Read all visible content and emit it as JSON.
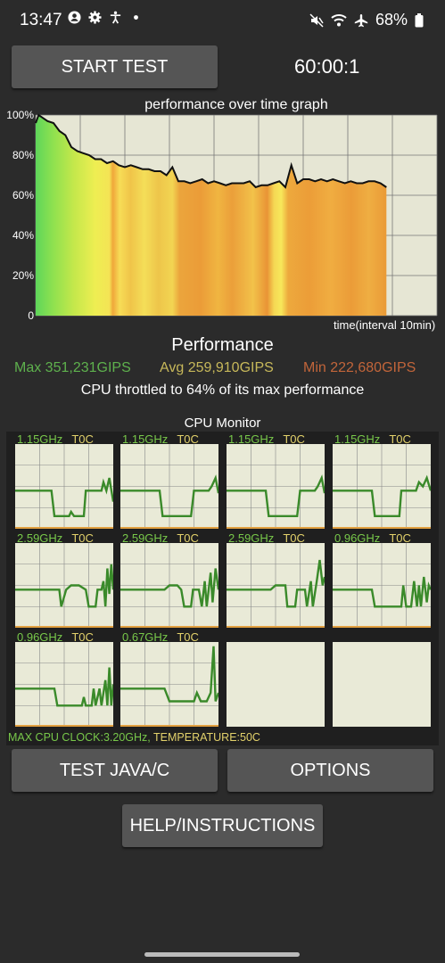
{
  "status_bar": {
    "time": "13:47",
    "battery": "68%",
    "left_icons": [
      "account-circle-icon",
      "settings-gear-icon",
      "accessibility-icon",
      "dot-icon"
    ],
    "right_icons": [
      "mute-icon",
      "wifi-icon",
      "airplane-icon",
      "battery-icon"
    ]
  },
  "controls": {
    "start_test_label": "START TEST",
    "timer": "60:00:1"
  },
  "graph": {
    "title": "performance over time graph",
    "y_labels": [
      "100%",
      "80%",
      "60%",
      "40%",
      "20%",
      "0"
    ],
    "x_label": "time(interval 10min)"
  },
  "performance": {
    "heading": "Performance",
    "max": "Max 351,231GIPS",
    "avg": "Avg 259,910GIPS",
    "min": "Min 222,680GIPS",
    "throttle_text": "CPU throttled to 64% of its max performance",
    "colors": {
      "max": "#5eb14d",
      "avg": "#c7b85a",
      "min": "#c2653a"
    }
  },
  "cpu_monitor": {
    "title": "CPU Monitor",
    "cores": [
      {
        "freq": "1.15GHz",
        "temp": "T0C"
      },
      {
        "freq": "1.15GHz",
        "temp": "T0C"
      },
      {
        "freq": "1.15GHz",
        "temp": "T0C"
      },
      {
        "freq": "1.15GHz",
        "temp": "T0C"
      },
      {
        "freq": "2.59GHz",
        "temp": "T0C"
      },
      {
        "freq": "2.59GHz",
        "temp": "T0C"
      },
      {
        "freq": "2.59GHz",
        "temp": "T0C"
      },
      {
        "freq": "0.96GHz",
        "temp": "T0C"
      },
      {
        "freq": "0.96GHz",
        "temp": "T0C"
      },
      {
        "freq": "0.67GHz",
        "temp": "T0C"
      }
    ],
    "max_clock": "MAX CPU CLOCK:3.20GHz,",
    "temperature": " TEMPERATURE:50C"
  },
  "buttons": {
    "test_java_c": "TEST JAVA/C",
    "options": "OPTIONS",
    "help": "HELP/INSTRUCTIONS"
  },
  "chart_data": {
    "type": "line",
    "title": "performance over time graph",
    "xlabel": "time(interval 10min)",
    "ylabel": "",
    "ylim": [
      0,
      100
    ],
    "x_units": "minutes",
    "x_range": [
      0,
      60
    ],
    "grid": true,
    "series": [
      {
        "x": [
          0,
          0.5,
          1,
          2,
          3,
          4,
          5,
          6,
          7,
          8,
          9,
          10,
          11,
          12,
          13,
          14,
          15,
          16,
          17,
          18,
          19,
          20,
          21,
          22,
          23,
          24,
          25,
          26,
          27,
          28,
          29,
          30,
          31,
          32,
          33,
          34,
          35,
          36,
          37,
          38,
          39,
          40,
          41,
          42,
          43,
          44,
          45,
          46,
          47,
          48,
          49,
          50,
          51,
          52,
          53,
          54,
          55,
          56,
          57,
          58,
          59
        ],
        "values": [
          96,
          100,
          99,
          97,
          96,
          92,
          90,
          84,
          82,
          81,
          80,
          78,
          78,
          76,
          77,
          75,
          74,
          75,
          74,
          73,
          73,
          72,
          72,
          70,
          74,
          67,
          67,
          66,
          67,
          68,
          66,
          67,
          66,
          65,
          66,
          66,
          66,
          67,
          64,
          65,
          65,
          66,
          67,
          64,
          75,
          66,
          68,
          68,
          67,
          68,
          67,
          68,
          67,
          66,
          67,
          66,
          66,
          67,
          67,
          66,
          64
        ]
      }
    ]
  }
}
